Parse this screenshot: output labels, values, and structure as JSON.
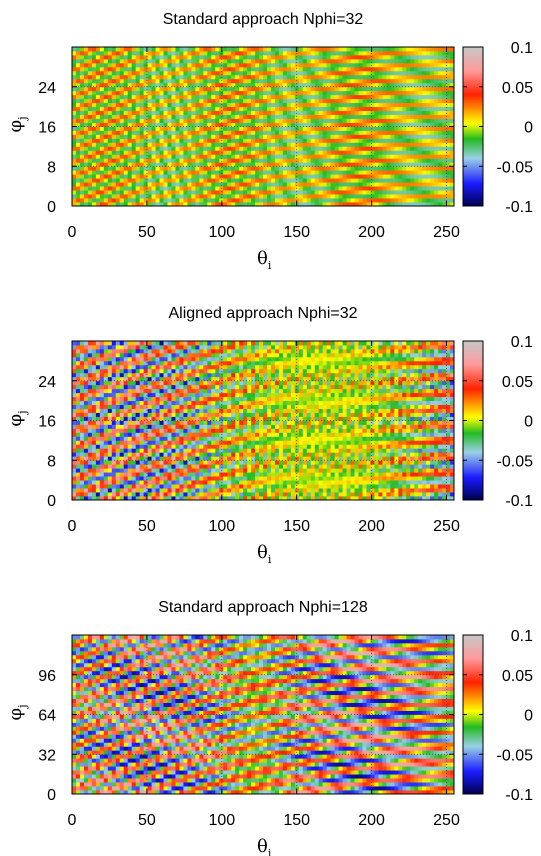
{
  "chart_data": [
    {
      "type": "heatmap",
      "title": "Standard approach Nphi=32",
      "xlabel": "θ",
      "xlabel_sub": "i",
      "ylabel": "φ",
      "ylabel_sub": "j",
      "xlim": [
        0,
        255
      ],
      "ylim": [
        0,
        32
      ],
      "xticks": [
        0,
        50,
        100,
        150,
        200,
        250
      ],
      "yticks": [
        0,
        8,
        16,
        24
      ],
      "grid": true,
      "colorbar": {
        "range": [
          -0.1,
          0.1
        ],
        "ticks": [
          0.1,
          0.05,
          0,
          -0.05,
          -0.1
        ],
        "tick_labels": [
          "0.1",
          "0.05",
          "0",
          "-0.05",
          "-0.1"
        ]
      },
      "pattern": "smooth diagonal stripes"
    },
    {
      "type": "heatmap",
      "title": "Aligned approach Nphi=32",
      "xlabel": "θ",
      "xlabel_sub": "i",
      "ylabel": "φ",
      "ylabel_sub": "j",
      "xlim": [
        0,
        255
      ],
      "ylim": [
        0,
        32
      ],
      "xticks": [
        0,
        50,
        100,
        150,
        200,
        250
      ],
      "yticks": [
        0,
        8,
        16,
        24
      ],
      "grid": true,
      "colorbar": {
        "range": [
          -0.1,
          0.1
        ],
        "ticks": [
          0.1,
          0.05,
          0,
          -0.05,
          -0.1
        ],
        "tick_labels": [
          "0.1",
          "0.05",
          "0",
          "-0.05",
          "-0.1"
        ]
      },
      "pattern": "noisy diagonal stripes"
    },
    {
      "type": "heatmap",
      "title": "Standard approach Nphi=128",
      "xlabel": "θ",
      "xlabel_sub": "i",
      "ylabel": "φ",
      "ylabel_sub": "j",
      "xlim": [
        0,
        255
      ],
      "ylim": [
        0,
        128
      ],
      "xticks": [
        0,
        50,
        100,
        150,
        200,
        250
      ],
      "yticks": [
        0,
        32,
        64,
        96
      ],
      "grid": true,
      "colorbar": {
        "range": [
          -0.1,
          0.1
        ],
        "ticks": [
          0.1,
          0.05,
          0,
          -0.05,
          -0.1
        ],
        "tick_labels": [
          "0.1",
          "0.05",
          "0",
          "-0.05",
          "-0.1"
        ]
      },
      "pattern": "high-contrast diagonal stripes"
    }
  ],
  "colors": {
    "colormap": [
      "#000050",
      "#1a1aff",
      "#9ad0e6",
      "#22bb22",
      "#ffff00",
      "#ff2200",
      "#ff9999",
      "#c8c8c8"
    ],
    "axis": "#000000",
    "grid": "#555555"
  }
}
